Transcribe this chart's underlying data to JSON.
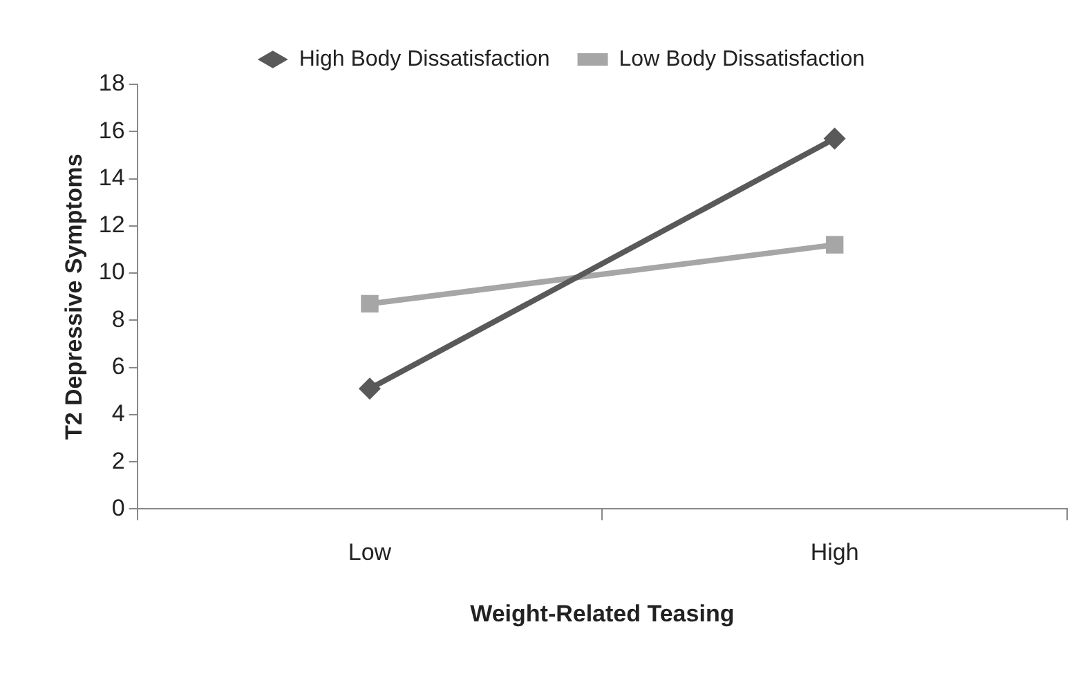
{
  "chart_data": {
    "type": "line",
    "xlabel": "Weight-Related Teasing",
    "ylabel": "T2 Depressive Symptoms",
    "categories": [
      "Low",
      "High"
    ],
    "series": [
      {
        "name": "High Body Dissatisfaction",
        "color": "#595959",
        "values": [
          5.1,
          15.7
        ],
        "marker": "diamond"
      },
      {
        "name": "Low Body Dissatisfaction",
        "color": "#a6a6a6",
        "values": [
          8.7,
          11.2
        ],
        "marker": "square"
      }
    ],
    "ylim": [
      0,
      18
    ],
    "yticks": [
      0,
      2,
      4,
      6,
      8,
      10,
      12,
      14,
      16,
      18
    ],
    "grid": false,
    "legend": "top",
    "line_style": "solid"
  }
}
